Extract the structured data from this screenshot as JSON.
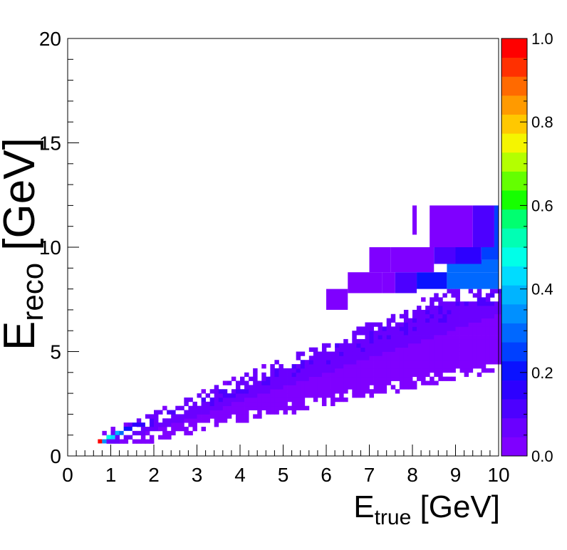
{
  "chart_data": {
    "type": "heatmap",
    "title": "",
    "xlabel": {
      "main": "E",
      "sub": "true",
      "unit": " [GeV]"
    },
    "ylabel": {
      "main": "E",
      "sub": "reco",
      "unit": " [GeV]"
    },
    "xlim": [
      0,
      10
    ],
    "ylim": [
      0,
      20
    ],
    "x_ticks": [
      "0",
      "1",
      "2",
      "3",
      "4",
      "5",
      "6",
      "7",
      "8",
      "9",
      "10"
    ],
    "y_ticks": [
      "0",
      "5",
      "10",
      "15",
      "20"
    ],
    "colorbar": {
      "range": [
        0,
        1
      ],
      "ticks": [
        "0.0",
        "0.2",
        "0.4",
        "0.6",
        "0.8",
        "1.0"
      ]
    },
    "bins": {
      "x_width": 0.1,
      "y_width": 0.2
    },
    "grid": false,
    "cells": [
      {
        "x0": 0.7,
        "x1": 0.8,
        "y0": 0.6,
        "y1": 0.8,
        "z": 1.0
      },
      {
        "x0": 0.8,
        "x1": 0.9,
        "y0": 0.6,
        "y1": 0.8,
        "z": 0.35
      },
      {
        "x0": 0.9,
        "x1": 1.0,
        "y0": 0.8,
        "y1": 1.0,
        "z": 0.5
      },
      {
        "x0": 1.0,
        "x1": 1.1,
        "y0": 0.8,
        "y1": 1.0,
        "z": 0.45
      },
      {
        "x0": 1.1,
        "x1": 1.2,
        "y0": 1.0,
        "y1": 1.2,
        "z": 0.4
      },
      {
        "x0": 1.2,
        "x1": 1.3,
        "y0": 1.0,
        "y1": 1.2,
        "z": 0.3
      },
      {
        "x0": 1.3,
        "x1": 1.5,
        "y0": 1.2,
        "y1": 1.4,
        "z": 0.22
      },
      {
        "x0": 1.5,
        "x1": 1.8,
        "y0": 1.4,
        "y1": 1.6,
        "z": 0.15
      },
      {
        "x0": 6.5,
        "x1": 7.3,
        "y0": 7.8,
        "y1": 8.8,
        "z": 0.02
      },
      {
        "x0": 7.3,
        "x1": 7.6,
        "y0": 7.8,
        "y1": 8.8,
        "z": 0.04
      },
      {
        "x0": 7.6,
        "x1": 8.1,
        "y0": 7.8,
        "y1": 8.8,
        "z": 0.12
      },
      {
        "x0": 8.1,
        "x1": 8.8,
        "y0": 8.0,
        "y1": 8.8,
        "z": 0.2
      },
      {
        "x0": 8.8,
        "x1": 10.0,
        "y0": 8.0,
        "y1": 8.8,
        "z": 0.32
      },
      {
        "x0": 8.8,
        "x1": 10.0,
        "y0": 8.8,
        "y1": 9.4,
        "z": 0.3
      },
      {
        "x0": 9.6,
        "x1": 10.0,
        "y0": 9.4,
        "y1": 10.0,
        "z": 0.28
      },
      {
        "x0": 8.5,
        "x1": 9.0,
        "y0": 9.2,
        "y1": 10.0,
        "z": 0.12
      },
      {
        "x0": 9.0,
        "x1": 9.6,
        "y0": 9.2,
        "y1": 10.0,
        "z": 0.16
      },
      {
        "x0": 7.5,
        "x1": 8.5,
        "y0": 8.8,
        "y1": 10.0,
        "z": 0.02
      },
      {
        "x0": 7.0,
        "x1": 7.5,
        "y0": 8.8,
        "y1": 10.0,
        "z": 0.02
      },
      {
        "x0": 6.0,
        "x1": 6.5,
        "y0": 7.0,
        "y1": 8.0,
        "z": 0.02
      },
      {
        "x0": 8.4,
        "x1": 9.4,
        "y0": 10.0,
        "y1": 12.0,
        "z": 0.02
      },
      {
        "x0": 9.4,
        "x1": 9.9,
        "y0": 10.0,
        "y1": 12.0,
        "z": 0.1
      },
      {
        "x0": 9.9,
        "x1": 10.0,
        "y0": 10.0,
        "y1": 12.0,
        "z": 0.25
      },
      {
        "x0": 8.0,
        "x1": 8.1,
        "y0": 10.6,
        "y1": 12.0,
        "z": 0.02
      },
      {
        "x0": 7.3,
        "x1": 7.4,
        "y0": 9.2,
        "y1": 10.0,
        "z": 0.02
      }
    ]
  }
}
